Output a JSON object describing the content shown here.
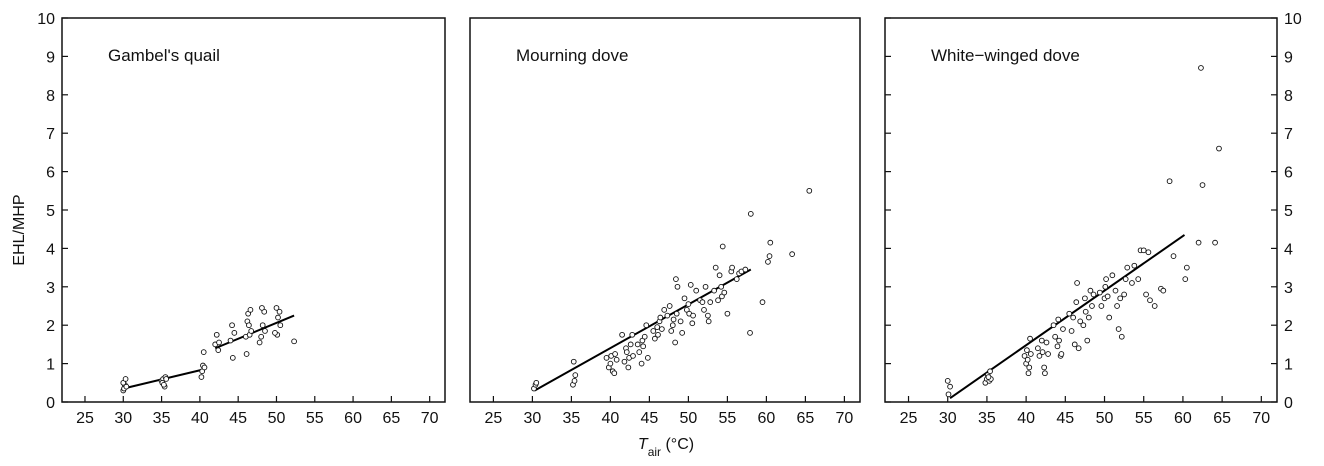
{
  "figure": {
    "ylabel": "EHL/MHP",
    "xlabel_main": "T",
    "xlabel_sub": "air",
    "xlabel_unit": " (°C)"
  },
  "chart_data": [
    {
      "type": "scatter",
      "title": "Gambel's quail",
      "xlim": [
        22,
        72
      ],
      "ylim": [
        0,
        10
      ],
      "xticks": [
        25,
        30,
        35,
        40,
        45,
        50,
        55,
        60,
        65,
        70
      ],
      "yticks": [
        0,
        1,
        2,
        3,
        4,
        5,
        6,
        7,
        8,
        9,
        10
      ],
      "points": [
        [
          30,
          0.3
        ],
        [
          30.1,
          0.35
        ],
        [
          30.2,
          0.45
        ],
        [
          30,
          0.5
        ],
        [
          30.3,
          0.6
        ],
        [
          30.4,
          0.4
        ],
        [
          35,
          0.55
        ],
        [
          35.2,
          0.6
        ],
        [
          35.4,
          0.4
        ],
        [
          35.1,
          0.5
        ],
        [
          35.5,
          0.65
        ],
        [
          35.3,
          0.45
        ],
        [
          35.6,
          0.6
        ],
        [
          40.2,
          0.65
        ],
        [
          40.3,
          0.8
        ],
        [
          40.4,
          0.95
        ],
        [
          40.5,
          1.3
        ],
        [
          40.6,
          0.9
        ],
        [
          42,
          1.5
        ],
        [
          42.2,
          1.75
        ],
        [
          42.4,
          1.35
        ],
        [
          42.5,
          1.55
        ],
        [
          44,
          1.6
        ],
        [
          44.2,
          2.0
        ],
        [
          44.5,
          1.8
        ],
        [
          44.3,
          1.15
        ],
        [
          46,
          1.7
        ],
        [
          46.2,
          2.1
        ],
        [
          46.3,
          2.3
        ],
        [
          46.4,
          2.0
        ],
        [
          46.5,
          1.75
        ],
        [
          46.6,
          2.4
        ],
        [
          46.1,
          1.25
        ],
        [
          46.7,
          1.85
        ],
        [
          48,
          1.7
        ],
        [
          48.2,
          2.0
        ],
        [
          48.4,
          2.35
        ],
        [
          48.5,
          1.85
        ],
        [
          47.8,
          1.55
        ],
        [
          48.1,
          2.45
        ],
        [
          50,
          2.45
        ],
        [
          50.2,
          2.2
        ],
        [
          50.4,
          2.35
        ],
        [
          50.5,
          2.0
        ],
        [
          50.1,
          1.75
        ],
        [
          49.8,
          1.8
        ],
        [
          52.3,
          1.58
        ]
      ],
      "fits": [
        {
          "x": [
            30,
            40.5
          ],
          "y": [
            0.35,
            0.85
          ]
        },
        {
          "x": [
            42,
            52.3
          ],
          "y": [
            1.4,
            2.25
          ]
        }
      ]
    },
    {
      "type": "scatter",
      "title": "Mourning dove",
      "xlim": [
        22,
        72
      ],
      "ylim": [
        0,
        10
      ],
      "xticks": [
        25,
        30,
        35,
        40,
        45,
        50,
        55,
        60,
        65,
        70
      ],
      "yticks": [
        0,
        1,
        2,
        3,
        4,
        5,
        6,
        7,
        8,
        9,
        10
      ],
      "points": [
        [
          30.2,
          0.35
        ],
        [
          30.4,
          0.45
        ],
        [
          30.5,
          0.5
        ],
        [
          35.2,
          0.45
        ],
        [
          35.4,
          0.55
        ],
        [
          35.5,
          0.7
        ],
        [
          35.3,
          1.05
        ],
        [
          39.5,
          1.15
        ],
        [
          39.8,
          0.9
        ],
        [
          40,
          1.0
        ],
        [
          40.1,
          1.2
        ],
        [
          40.3,
          0.8
        ],
        [
          40.5,
          0.75
        ],
        [
          40.6,
          1.25
        ],
        [
          40.8,
          1.1
        ],
        [
          41.5,
          1.75
        ],
        [
          41.8,
          1.05
        ],
        [
          42,
          1.4
        ],
        [
          42.1,
          1.3
        ],
        [
          42.3,
          0.9
        ],
        [
          42.4,
          1.15
        ],
        [
          42.6,
          1.5
        ],
        [
          42.8,
          1.75
        ],
        [
          42.9,
          1.2
        ],
        [
          43.5,
          1.5
        ],
        [
          43.7,
          1.3
        ],
        [
          44,
          1.0
        ],
        [
          44.1,
          1.6
        ],
        [
          44.2,
          1.45
        ],
        [
          44.4,
          1.7
        ],
        [
          44.6,
          2.0
        ],
        [
          44.8,
          1.15
        ],
        [
          45.5,
          1.85
        ],
        [
          45.7,
          1.65
        ],
        [
          46,
          1.95
        ],
        [
          46.1,
          1.75
        ],
        [
          46.3,
          2.1
        ],
        [
          46.4,
          2.2
        ],
        [
          46.6,
          1.9
        ],
        [
          46.9,
          2.4
        ],
        [
          47.3,
          2.25
        ],
        [
          47.6,
          2.5
        ],
        [
          47.8,
          1.85
        ],
        [
          48,
          2.0
        ],
        [
          48.1,
          2.15
        ],
        [
          48.3,
          1.55
        ],
        [
          48.5,
          2.3
        ],
        [
          48.4,
          3.2
        ],
        [
          48.6,
          3.0
        ],
        [
          49,
          2.1
        ],
        [
          49.2,
          1.8
        ],
        [
          49.5,
          2.7
        ],
        [
          49.8,
          2.4
        ],
        [
          50,
          2.55
        ],
        [
          50.1,
          2.3
        ],
        [
          50.3,
          3.05
        ],
        [
          50.5,
          2.05
        ],
        [
          50.6,
          2.25
        ],
        [
          51,
          2.9
        ],
        [
          51.5,
          2.65
        ],
        [
          51.8,
          2.6
        ],
        [
          52,
          2.4
        ],
        [
          52.2,
          3.0
        ],
        [
          52.5,
          2.25
        ],
        [
          52.6,
          2.1
        ],
        [
          52.8,
          2.6
        ],
        [
          53.3,
          2.9
        ],
        [
          53.5,
          3.5
        ],
        [
          53.8,
          2.65
        ],
        [
          54,
          3.3
        ],
        [
          54.2,
          3.0
        ],
        [
          54.3,
          2.75
        ],
        [
          54.4,
          4.05
        ],
        [
          54.6,
          2.85
        ],
        [
          55,
          2.3
        ],
        [
          55.5,
          3.4
        ],
        [
          55.6,
          3.5
        ],
        [
          56.2,
          3.2
        ],
        [
          56.5,
          3.35
        ],
        [
          56.8,
          3.4
        ],
        [
          57.3,
          3.45
        ],
        [
          57.9,
          1.8
        ],
        [
          58,
          4.9
        ],
        [
          59.5,
          2.6
        ],
        [
          60.2,
          3.65
        ],
        [
          60.4,
          3.8
        ],
        [
          60.5,
          4.15
        ],
        [
          63.3,
          3.85
        ],
        [
          65.5,
          5.5
        ]
      ],
      "fits": [
        {
          "x": [
            30.3,
            58
          ],
          "y": [
            0.3,
            3.45
          ]
        }
      ]
    },
    {
      "type": "scatter",
      "title": "White−winged dove",
      "xlim": [
        22,
        72
      ],
      "ylim": [
        0,
        10
      ],
      "xticks": [
        25,
        30,
        35,
        40,
        45,
        50,
        55,
        60,
        65,
        70
      ],
      "yticks": [
        0,
        1,
        2,
        3,
        4,
        5,
        6,
        7,
        8,
        9,
        10
      ],
      "points": [
        [
          30,
          0.55
        ],
        [
          30.3,
          0.4
        ],
        [
          30.1,
          0.2
        ],
        [
          34.8,
          0.5
        ],
        [
          35,
          0.6
        ],
        [
          35.1,
          0.7
        ],
        [
          35.3,
          0.55
        ],
        [
          35.4,
          0.8
        ],
        [
          35.5,
          0.6
        ],
        [
          35.2,
          0.65
        ],
        [
          39.8,
          1.2
        ],
        [
          40,
          1.0
        ],
        [
          40.1,
          1.35
        ],
        [
          40.2,
          1.1
        ],
        [
          40.3,
          0.75
        ],
        [
          40.4,
          0.9
        ],
        [
          40.5,
          1.65
        ],
        [
          40.6,
          1.25
        ],
        [
          41.5,
          1.4
        ],
        [
          41.7,
          1.2
        ],
        [
          42,
          1.6
        ],
        [
          42.1,
          1.3
        ],
        [
          42.3,
          0.9
        ],
        [
          42.4,
          0.75
        ],
        [
          42.6,
          1.55
        ],
        [
          42.8,
          1.25
        ],
        [
          43.5,
          2.0
        ],
        [
          43.7,
          1.7
        ],
        [
          44,
          1.45
        ],
        [
          44.1,
          2.15
        ],
        [
          44.2,
          1.6
        ],
        [
          44.4,
          1.2
        ],
        [
          44.5,
          1.25
        ],
        [
          44.7,
          1.9
        ],
        [
          45.5,
          2.3
        ],
        [
          45.8,
          1.85
        ],
        [
          46,
          2.2
        ],
        [
          46.2,
          1.5
        ],
        [
          46.4,
          2.6
        ],
        [
          46.5,
          3.1
        ],
        [
          46.7,
          1.4
        ],
        [
          46.9,
          2.1
        ],
        [
          47.3,
          2.0
        ],
        [
          47.5,
          2.7
        ],
        [
          47.6,
          2.35
        ],
        [
          47.8,
          1.6
        ],
        [
          48,
          2.2
        ],
        [
          48.2,
          2.9
        ],
        [
          48.4,
          2.5
        ],
        [
          48.6,
          2.8
        ],
        [
          49.4,
          2.85
        ],
        [
          49.6,
          2.5
        ],
        [
          50,
          2.7
        ],
        [
          50.1,
          3.0
        ],
        [
          50.2,
          3.2
        ],
        [
          50.4,
          2.75
        ],
        [
          50.6,
          2.2
        ],
        [
          51,
          3.3
        ],
        [
          51.4,
          2.9
        ],
        [
          51.6,
          2.5
        ],
        [
          51.8,
          1.9
        ],
        [
          52,
          2.7
        ],
        [
          52.2,
          1.7
        ],
        [
          52.5,
          2.8
        ],
        [
          52.7,
          3.2
        ],
        [
          52.9,
          3.5
        ],
        [
          53.5,
          3.1
        ],
        [
          53.8,
          3.55
        ],
        [
          54.3,
          3.2
        ],
        [
          54.6,
          3.95
        ],
        [
          55,
          3.95
        ],
        [
          55.3,
          2.8
        ],
        [
          55.6,
          3.9
        ],
        [
          55.8,
          2.65
        ],
        [
          56.4,
          2.5
        ],
        [
          57.2,
          2.95
        ],
        [
          57.5,
          2.9
        ],
        [
          58.3,
          5.75
        ],
        [
          58.8,
          3.8
        ],
        [
          60.3,
          3.2
        ],
        [
          60.5,
          3.5
        ],
        [
          62,
          4.15
        ],
        [
          62.3,
          8.7
        ],
        [
          62.5,
          5.65
        ],
        [
          64.1,
          4.15
        ],
        [
          64.6,
          6.6
        ]
      ],
      "fits": [
        {
          "x": [
            30.3,
            60.2
          ],
          "y": [
            0.1,
            4.35
          ]
        }
      ]
    }
  ]
}
